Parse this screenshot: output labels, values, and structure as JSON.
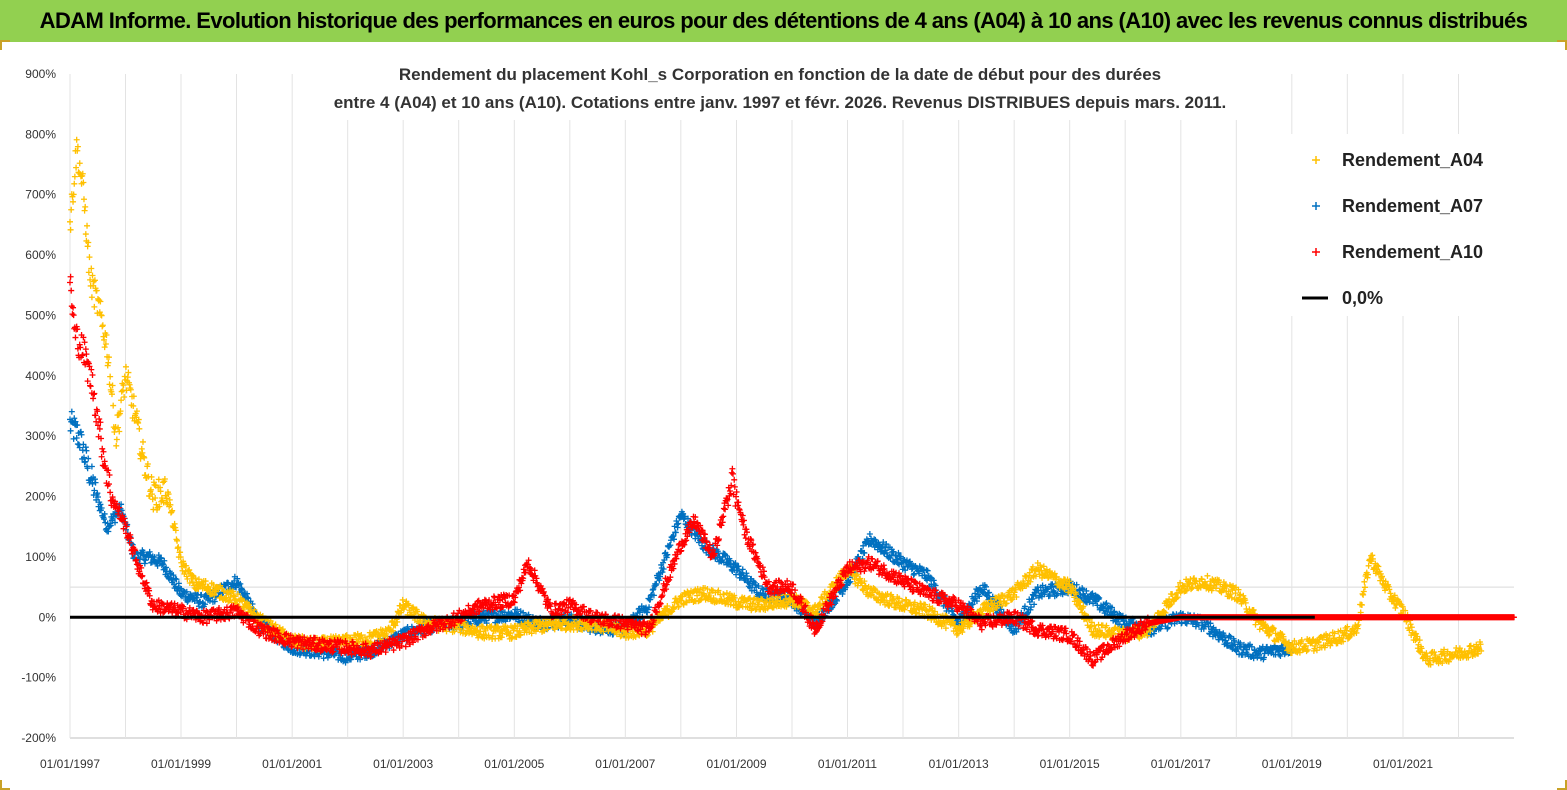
{
  "header": {
    "title": "ADAM Informe. Evolution historique des performances en euros pour des détentions de 4 ans (A04) à 10 ans (A10) avec les revenus connus distribués"
  },
  "colors": {
    "banner": "#92d050",
    "A04": "#ffc000",
    "A07": "#0070c0",
    "A10": "#ff0000",
    "zero": "#000000"
  },
  "chart_data": {
    "type": "scatter",
    "title_lines": [
      "Rendement du placement Kohl_s Corporation en fonction de la date de début pour des durées",
      "entre 4 (A04) et 10 ans (A10).  Cotations entre janv. 1997 et févr. 2026. Revenus  DISTRIBUES depuis mars. 2011."
    ],
    "xlim": [
      "1997-01-01",
      "2023-01-01"
    ],
    "ylim": [
      -200,
      900
    ],
    "y_unit": "%",
    "x_tick_labels": [
      "01/01/1997",
      "01/01/1999",
      "01/01/2001",
      "01/01/2003",
      "01/01/2005",
      "01/01/2007",
      "01/01/2009",
      "01/01/2011",
      "01/01/2013",
      "01/01/2015",
      "01/01/2017",
      "01/01/2019",
      "01/01/2021"
    ],
    "y_tick_labels": [
      "900%",
      "800%",
      "700%",
      "600%",
      "500%",
      "400%",
      "300%",
      "200%",
      "100%",
      "0%",
      "-100%",
      "-200%"
    ],
    "y_ticks": [
      900,
      800,
      700,
      600,
      500,
      400,
      300,
      200,
      100,
      0,
      -100,
      -200
    ],
    "grid": "vertical",
    "legend_position": "top-right",
    "legend": [
      "Rendement_A04",
      "Rendement_A07",
      "Rendement_A10",
      "0,0%"
    ],
    "series": [
      {
        "name": "Rendement_A04",
        "x": [
          "1997-01-01",
          "1997-02-15",
          "1997-04-01",
          "1997-05-15",
          "1997-07-01",
          "1997-09-01",
          "1997-11-01",
          "1998-01-01",
          "1998-03-01",
          "1998-05-01",
          "1998-07-01",
          "1998-10-01",
          "1999-01-01",
          "1999-04-01",
          "1999-07-01",
          "2000-01-01",
          "2000-06-01",
          "2001-01-01",
          "2001-06-01",
          "2002-01-01",
          "2002-06-01",
          "2002-10-01",
          "2003-01-01",
          "2003-06-01",
          "2004-01-01",
          "2004-06-01",
          "2005-01-01",
          "2005-06-01",
          "2006-01-01",
          "2006-06-01",
          "2007-01-01",
          "2007-06-01",
          "2008-01-01",
          "2008-06-01",
          "2009-01-01",
          "2009-06-01",
          "2010-01-01",
          "2010-06-01",
          "2011-01-01",
          "2011-06-01",
          "2012-01-01",
          "2012-06-01",
          "2013-01-01",
          "2013-06-01",
          "2014-01-01",
          "2014-06-01",
          "2015-01-01",
          "2015-06-01",
          "2016-01-01",
          "2016-06-01",
          "2017-01-01",
          "2017-06-01",
          "2018-01-01",
          "2018-06-01",
          "2019-01-01",
          "2019-06-01",
          "2019-12-01",
          "2020-03-01",
          "2020-06-01",
          "2020-10-01",
          "2021-01-01",
          "2021-06-01",
          "2022-01-01",
          "2022-06-01"
        ],
        "y": [
          650,
          780,
          700,
          560,
          520,
          450,
          300,
          400,
          340,
          260,
          200,
          210,
          90,
          55,
          50,
          30,
          -5,
          -40,
          -45,
          -40,
          -35,
          -25,
          20,
          -10,
          -15,
          -25,
          -25,
          -15,
          -10,
          -10,
          -25,
          -20,
          30,
          40,
          25,
          20,
          30,
          10,
          80,
          40,
          20,
          10,
          -20,
          10,
          40,
          80,
          50,
          -20,
          -30,
          -20,
          50,
          60,
          40,
          -10,
          -50,
          -45,
          -30,
          -20,
          100,
          40,
          10,
          -70,
          -60,
          -50
        ]
      },
      {
        "name": "Rendement_A07",
        "x": [
          "1997-01-01",
          "1997-03-01",
          "1997-06-01",
          "1997-09-01",
          "1997-12-01",
          "1998-03-01",
          "1998-06-01",
          "1998-09-01",
          "1999-01-01",
          "1999-06-01",
          "2000-01-01",
          "2000-06-01",
          "2001-01-01",
          "2001-06-01",
          "2002-01-01",
          "2002-06-01",
          "2003-01-01",
          "2003-06-01",
          "2004-01-01",
          "2004-06-01",
          "2005-01-01",
          "2005-06-01",
          "2006-01-01",
          "2006-06-01",
          "2007-01-01",
          "2007-06-01",
          "2008-01-01",
          "2008-06-01",
          "2009-01-01",
          "2009-06-01",
          "2010-01-01",
          "2010-06-01",
          "2011-01-01",
          "2011-06-01",
          "2012-01-01",
          "2012-06-01",
          "2013-01-01",
          "2013-06-01",
          "2014-01-01",
          "2014-06-01",
          "2015-01-01",
          "2015-06-01",
          "2016-01-01",
          "2016-06-01",
          "2017-01-01",
          "2017-06-01",
          "2018-01-01",
          "2018-06-01",
          "2019-01-01"
        ],
        "y": [
          320,
          300,
          220,
          150,
          180,
          100,
          100,
          90,
          40,
          25,
          60,
          -10,
          -50,
          -55,
          -65,
          -55,
          -30,
          -15,
          -10,
          0,
          5,
          -10,
          -5,
          -15,
          -20,
          20,
          170,
          120,
          80,
          40,
          30,
          -10,
          60,
          130,
          90,
          70,
          -10,
          50,
          -20,
          40,
          50,
          30,
          -10,
          -20,
          0,
          -10,
          -50,
          -60,
          -50
        ]
      },
      {
        "name": "Rendement_A10",
        "x": [
          "1997-01-01",
          "1997-02-01",
          "1997-04-01",
          "1997-06-01",
          "1997-08-01",
          "1997-10-01",
          "1998-01-01",
          "1998-04-01",
          "1998-07-01",
          "1999-01-01",
          "1999-06-01",
          "2000-01-01",
          "2000-06-01",
          "2001-01-01",
          "2001-06-01",
          "2002-01-01",
          "2002-06-01",
          "2003-01-01",
          "2003-06-01",
          "2004-01-01",
          "2004-06-01",
          "2005-01-01",
          "2005-04-01",
          "2005-09-01",
          "2006-01-01",
          "2006-06-01",
          "2007-01-01",
          "2007-06-01",
          "2008-01-01",
          "2008-04-01",
          "2008-08-01",
          "2008-12-01",
          "2009-03-01",
          "2009-08-01",
          "2010-01-01",
          "2010-06-01",
          "2011-01-01",
          "2011-06-01",
          "2012-01-01",
          "2012-06-01",
          "2013-01-01",
          "2013-06-01",
          "2014-01-01",
          "2014-06-01",
          "2015-01-01",
          "2015-06-01",
          "2016-01-01",
          "2016-06-01",
          "2017-01-01",
          "2018-01-01",
          "2019-01-01",
          "2020-01-01",
          "2021-01-01",
          "2022-01-01",
          "2023-01-01"
        ],
        "y": [
          560,
          470,
          440,
          380,
          280,
          200,
          150,
          80,
          20,
          10,
          0,
          10,
          -20,
          -40,
          -45,
          -50,
          -55,
          -40,
          -20,
          0,
          20,
          30,
          90,
          10,
          20,
          0,
          -10,
          -20,
          120,
          160,
          100,
          230,
          140,
          50,
          50,
          -20,
          80,
          90,
          60,
          40,
          20,
          -10,
          0,
          -20,
          -30,
          -70,
          -30,
          -10,
          0,
          0,
          0,
          0,
          0,
          0,
          0
        ]
      },
      {
        "name": "0,0%",
        "x": [
          "1997-01-01",
          "2019-06-01"
        ],
        "y": [
          0,
          0
        ]
      }
    ]
  }
}
